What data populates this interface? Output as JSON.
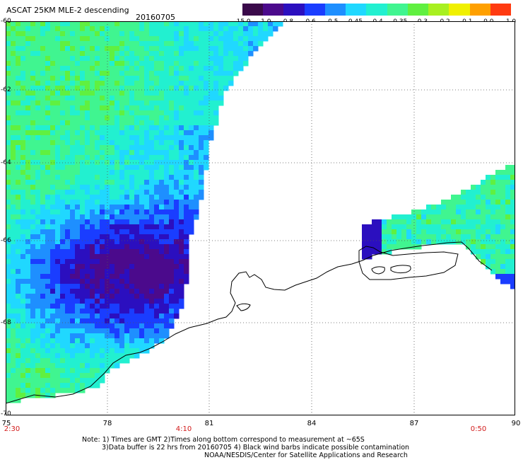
{
  "header": {
    "title": "ASCAT 25KM MLE-2 descending",
    "date": "20160705"
  },
  "colorbar": {
    "labels": [
      "-15.0",
      "-1.0",
      "-0.8",
      "-0.6",
      "-0.5",
      "-0.45",
      "-0.4",
      "-0.35",
      "-0.3",
      "-0.2",
      "-0.1",
      "0.0",
      "1.0"
    ],
    "colors": [
      "#3a0a4a",
      "#4b0a8c",
      "#2b0fbf",
      "#1a3dff",
      "#1e8fff",
      "#20d8ff",
      "#22f0d0",
      "#40f590",
      "#60f040",
      "#a8f020",
      "#f0f000",
      "#ffa000",
      "#ff3a10"
    ]
  },
  "map": {
    "lat_labels": [
      "-60",
      "-62",
      "-64",
      "-66",
      "-68",
      "-70"
    ],
    "lon_labels": [
      "75",
      "78",
      "81",
      "84",
      "87",
      "90"
    ],
    "time_labels": [
      "2:30",
      "4:10",
      "0:50"
    ]
  },
  "notes": {
    "line1": "Note: 1) Times are GMT 2)Times along bottom correspond to measurement at ~65S",
    "line2": "3)Data buffer is 22 hrs from 20160705 4) Black wind barbs indicate possible contamination",
    "line3": "NOAA/NESDIS/Center for Satellite Applications and Research"
  },
  "legend_colors": {
    "text_red": "#d21a1a",
    "coastline": "#000000",
    "gridline": "#555555"
  }
}
